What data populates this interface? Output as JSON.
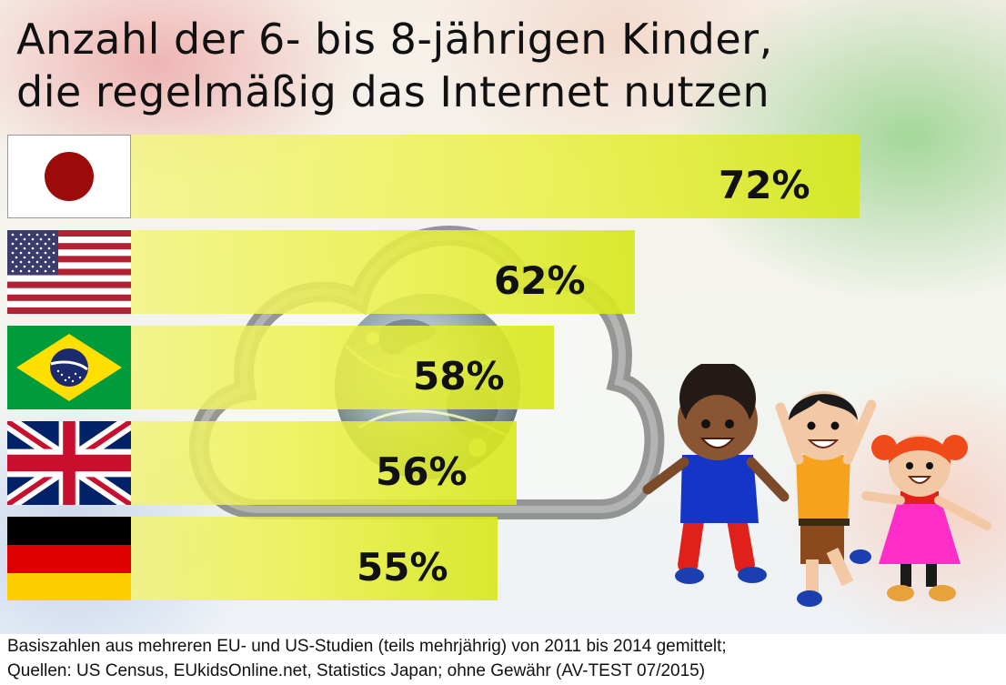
{
  "title_lines": [
    "Anzahl der 6- bis 8-jährigen Kinder,",
    "die regelmäßig das Internet nutzen"
  ],
  "chart_data": {
    "type": "bar",
    "orientation": "horizontal",
    "categories": [
      "Japan",
      "USA",
      "Brasilien",
      "Großbritannien",
      "Deutschland"
    ],
    "values": [
      72,
      62,
      58,
      56,
      55
    ],
    "value_labels": [
      "72%",
      "62%",
      "58%",
      "56%",
      "55%"
    ],
    "category_display": "flags",
    "unit": "%",
    "bar_color": "#e6ee3a",
    "grid": false,
    "legend": "none"
  },
  "footer": {
    "line1": "Basiszahlen aus mehreren EU- und US-Studien (teils mehrjährig) von 2011 bis 2014 gemittelt;",
    "line2": "Quellen: US Census, EUkidsOnline.net, Statistics Japan; ohne Gewähr (AV-TEST 07/2015)"
  },
  "decorations": {
    "background_icon": "cloud-globe-icon",
    "illustration": "three-cheering-children"
  },
  "colors": {
    "japan_red": "#9c0a0a",
    "usa_red": "#b22234",
    "usa_blue": "#3c3b6e",
    "brazil_green": "#009b3a",
    "brazil_yellow": "#fedf00",
    "brazil_blue": "#1a2a6c",
    "uk_blue": "#012169",
    "uk_red": "#c8102e",
    "germany_black": "#000000",
    "germany_red": "#dd0000",
    "germany_gold": "#ffce00"
  }
}
